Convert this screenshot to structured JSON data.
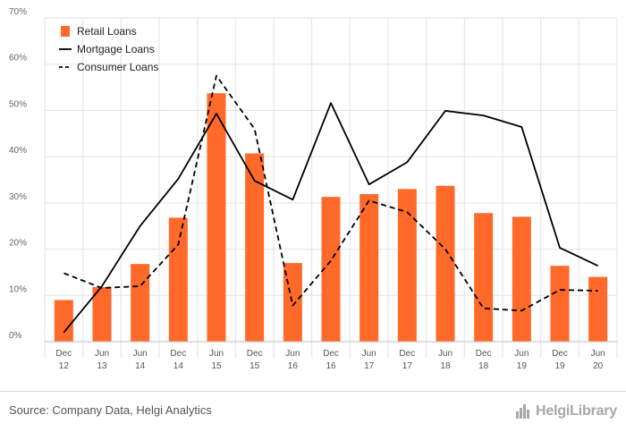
{
  "chart_data": {
    "type": "bar+line",
    "categories": [
      [
        "Dec",
        "12"
      ],
      [
        "Jun",
        "13"
      ],
      [
        "Jun",
        "14"
      ],
      [
        "Dec",
        "14"
      ],
      [
        "Jun",
        "15"
      ],
      [
        "Dec",
        "15"
      ],
      [
        "Jun",
        "16"
      ],
      [
        "Dec",
        "16"
      ],
      [
        "Jun",
        "17"
      ],
      [
        "Dec",
        "17"
      ],
      [
        "Jun",
        "18"
      ],
      [
        "Dec",
        "18"
      ],
      [
        "Jun",
        "19"
      ],
      [
        "Dec",
        "19"
      ],
      [
        "Jun",
        "20"
      ]
    ],
    "series": [
      {
        "name": "Retail Loans",
        "kind": "bar",
        "color": "#ff6a2b",
        "values": [
          9.0,
          11.8,
          16.8,
          26.8,
          53.7,
          40.7,
          17.0,
          31.3,
          31.9,
          33.0,
          33.7,
          27.8,
          27.0,
          16.4,
          14.0
        ]
      },
      {
        "name": "Mortgage Loans",
        "kind": "line",
        "style": "solid",
        "color": "#000000",
        "values": [
          2.0,
          12.0,
          25.0,
          35.2,
          49.3,
          34.8,
          30.7,
          51.6,
          34.0,
          38.8,
          49.9,
          48.9,
          46.4,
          20.3,
          16.4
        ]
      },
      {
        "name": "Consumer Loans",
        "kind": "line",
        "style": "dashed",
        "color": "#000000",
        "values": [
          14.8,
          11.6,
          12.0,
          21.0,
          57.5,
          46.0,
          7.8,
          17.5,
          30.5,
          28.0,
          20.0,
          7.2,
          6.7,
          11.2,
          11.0
        ]
      }
    ],
    "y_ticks": [
      "0%",
      "10%",
      "20%",
      "30%",
      "40%",
      "50%",
      "60%",
      "70%"
    ],
    "ylim": [
      0,
      70
    ],
    "grid": true,
    "legend_position": "top-left"
  },
  "footer": {
    "source": "Source: Company Data, Helgi Analytics",
    "logo": "HelgiLibrary"
  }
}
